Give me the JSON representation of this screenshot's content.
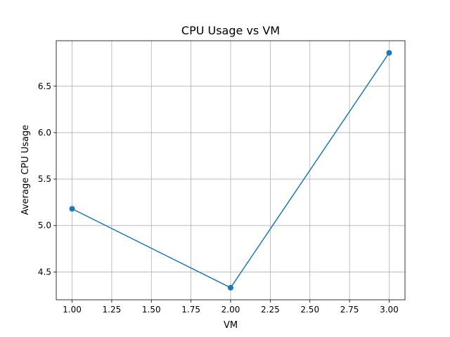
{
  "chart_data": {
    "type": "line",
    "title": "CPU Usage vs VM",
    "xlabel": "VM",
    "ylabel": "Average CPU Usage",
    "x": [
      1,
      2,
      3
    ],
    "series": [
      {
        "values": [
          5.18,
          4.33,
          6.86
        ],
        "color": "#1f77b4",
        "marker": "circle"
      }
    ],
    "xlim": [
      0.9,
      3.1
    ],
    "ylim": [
      4.2,
      6.99
    ],
    "xticks": [
      1.0,
      1.25,
      1.5,
      1.75,
      2.0,
      2.25,
      2.5,
      2.75,
      3.0
    ],
    "xtick_labels": [
      "1.00",
      "1.25",
      "1.50",
      "1.75",
      "2.00",
      "2.25",
      "2.50",
      "2.75",
      "3.00"
    ],
    "yticks": [
      4.5,
      5.0,
      5.5,
      6.0,
      6.5
    ],
    "ytick_labels": [
      "4.5",
      "5.0",
      "5.5",
      "6.0",
      "6.5"
    ],
    "grid": true,
    "legend": false
  }
}
